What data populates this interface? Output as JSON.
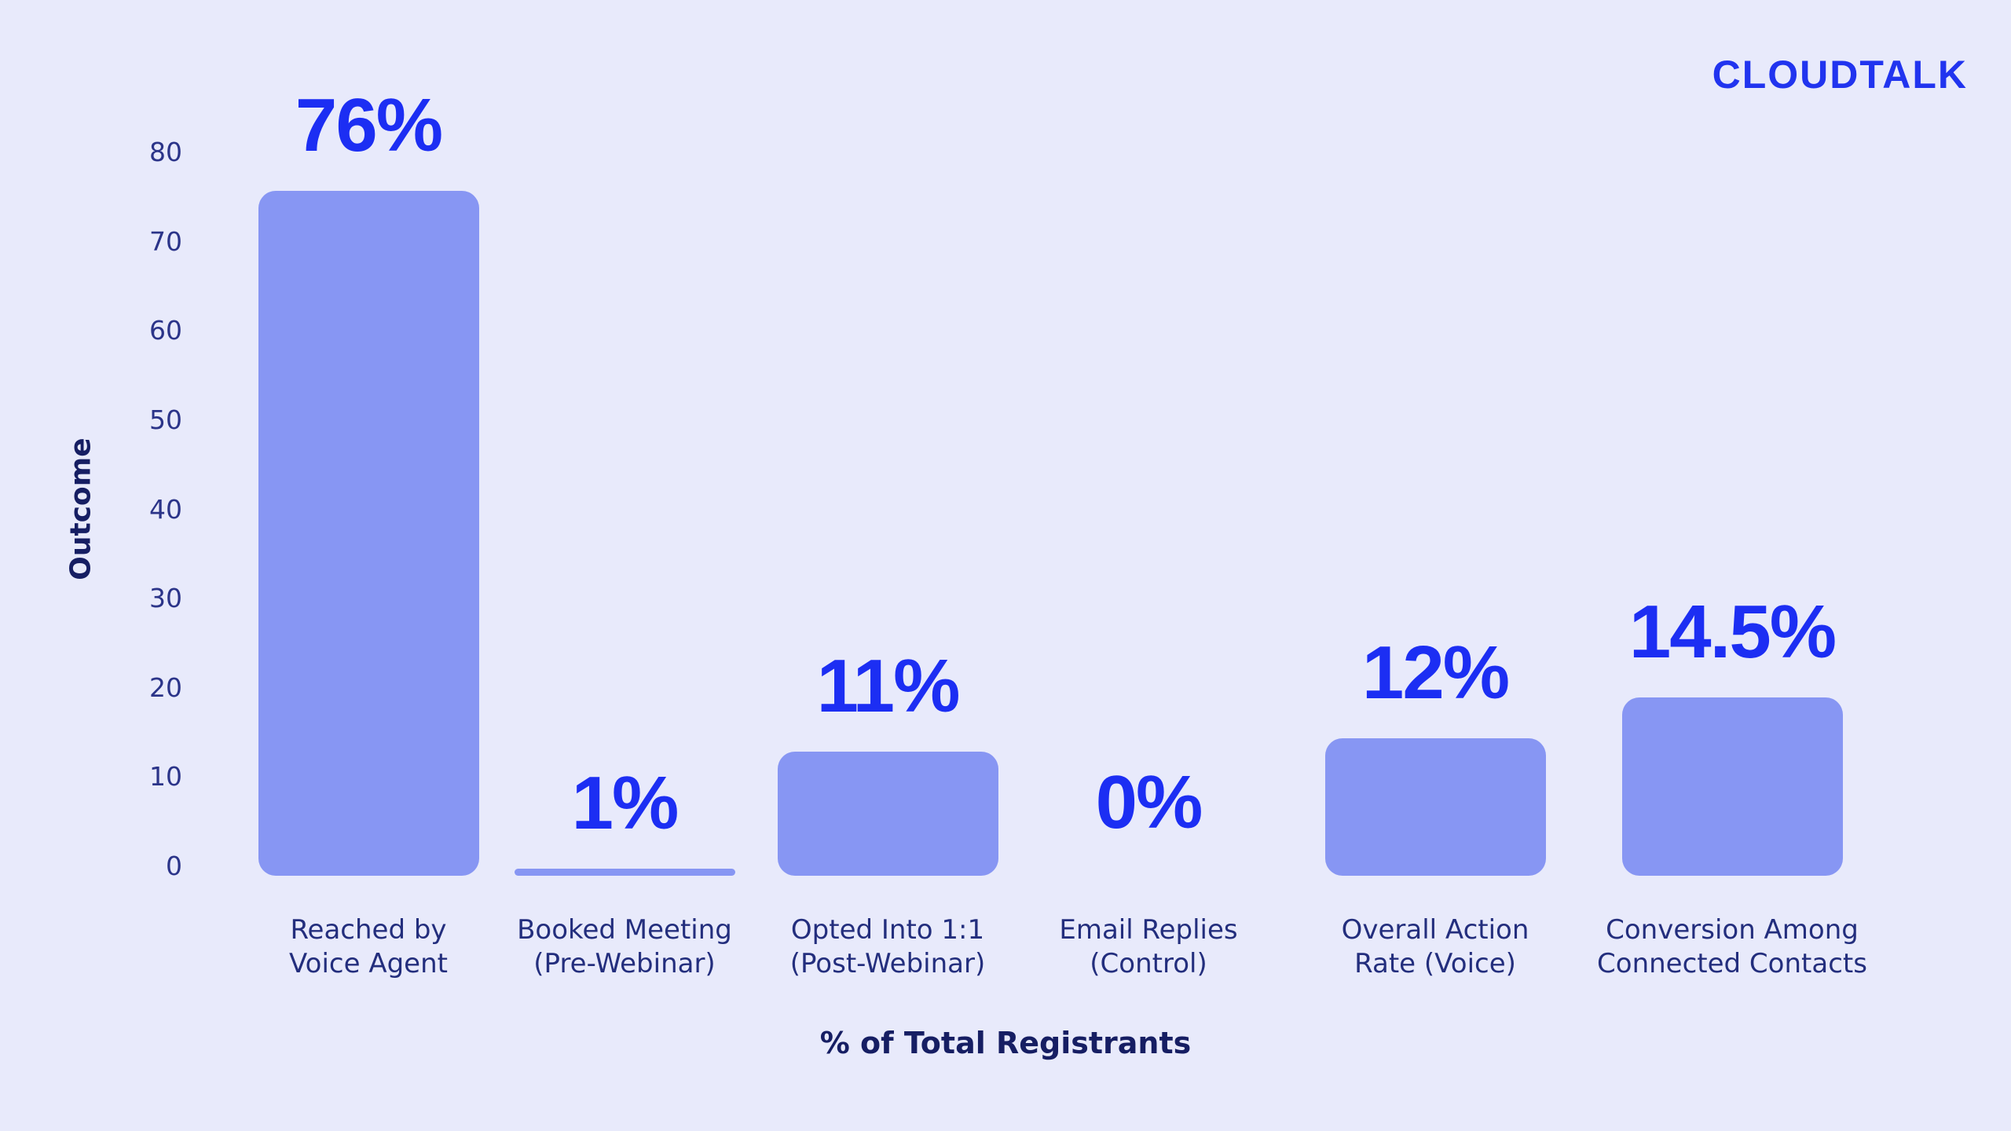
{
  "logo": {
    "text": "CLOUDTALK",
    "color": "#2134ef"
  },
  "page": {
    "background_color": "#e8eafb"
  },
  "chart_data": {
    "type": "bar",
    "title": "",
    "xlabel": "% of Total Registrants",
    "ylabel": "Outcome",
    "categories": [
      "Reached by\nVoice Agent",
      "Booked Meeting\n(Pre-Webinar)",
      "Opted Into 1:1\n(Post-Webinar)",
      "Email Replies\n(Control)",
      "Overall Action\nRate (Voice)",
      "Conversion Among\nConnected Contacts"
    ],
    "values": [
      76,
      1,
      11,
      0,
      12,
      14.5
    ],
    "value_labels": [
      "76%",
      "1%",
      "11%",
      "0%",
      "12%",
      "14.5%"
    ],
    "yticks": [
      0,
      10,
      20,
      30,
      40,
      50,
      60,
      70,
      80
    ],
    "ylim": [
      0,
      80
    ],
    "grid": false,
    "legend": false,
    "bar_color": "#8796f3",
    "value_label_color": "#1c2ef3",
    "tick_text_color": "#2b3489",
    "category_text_color": "#232e7d",
    "axis_title_color": "#161e63"
  }
}
